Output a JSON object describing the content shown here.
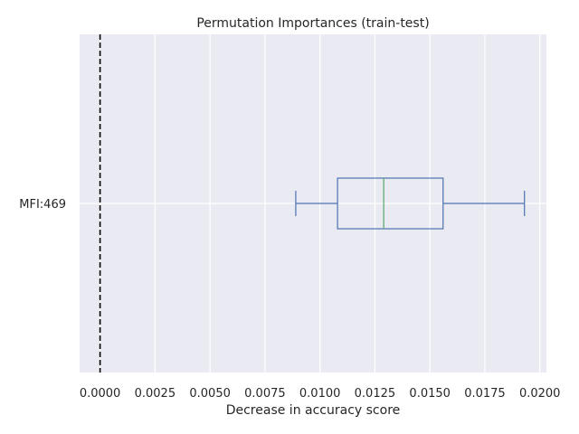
{
  "chart_data": {
    "type": "boxplot",
    "orientation": "horizontal",
    "title": "Permutation Importances (train-test)",
    "xlabel": "Decrease in accuracy score",
    "ylabel": "",
    "xlim": [
      -0.00093,
      0.0203
    ],
    "x_ticks": [
      0.0,
      0.0025,
      0.005,
      0.0075,
      0.01,
      0.0125,
      0.015,
      0.0175,
      0.02
    ],
    "x_tick_labels": [
      "0.0000",
      "0.0025",
      "0.0050",
      "0.0075",
      "0.0100",
      "0.0125",
      "0.0150",
      "0.0175",
      "0.0200"
    ],
    "grid": true,
    "reference_line": {
      "x": 0.0,
      "style": "dashed",
      "color": "#000000"
    },
    "categories": [
      "MFI:469"
    ],
    "boxes": [
      {
        "label": "MFI:469",
        "whisker_low": 0.0089,
        "q1": 0.0108,
        "median": 0.0129,
        "q3": 0.0156,
        "whisker_high": 0.0193
      }
    ],
    "colors": {
      "background": "#eaeaf2",
      "grid": "#ffffff",
      "box": "#4c72b0",
      "median": "#55a868"
    }
  }
}
